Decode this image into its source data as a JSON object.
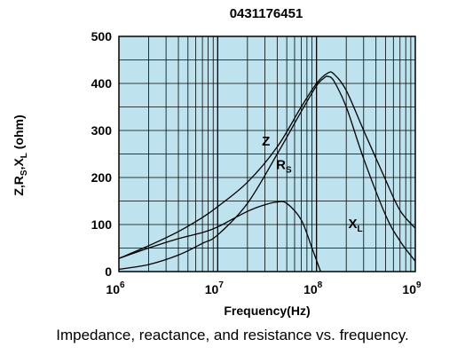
{
  "caption": "Impedance, reactance, and resistance vs. frequency.",
  "colors": {
    "plot_background": "#bfe3ee",
    "grid": "#000000",
    "lines": "#000000"
  },
  "chart_data": {
    "type": "line",
    "title": "0431176451",
    "xlabel": "Frequency(Hz)",
    "ylabel_parts": [
      "Z,R",
      "S",
      ",X",
      "L",
      " (ohm)"
    ],
    "x_scale": "log",
    "xlim": [
      1000000,
      1000000000
    ],
    "ylim": [
      0,
      500
    ],
    "grid": true,
    "x_ticks": [
      {
        "base": "10",
        "exp": "6"
      },
      {
        "base": "10",
        "exp": "7"
      },
      {
        "base": "10",
        "exp": "8"
      },
      {
        "base": "10",
        "exp": "9"
      }
    ],
    "y_ticks": [
      "0",
      "100",
      "200",
      "300",
      "400",
      "500"
    ],
    "series": [
      {
        "name": "Z",
        "label_main": "Z",
        "label_sub": "",
        "label_x": 28000000,
        "label_y": 268,
        "points": [
          [
            1000000,
            28
          ],
          [
            2000000,
            55
          ],
          [
            4000000,
            85
          ],
          [
            7000000,
            115
          ],
          [
            10000000,
            138
          ],
          [
            20000000,
            190
          ],
          [
            40000000,
            265
          ],
          [
            70000000,
            350
          ],
          [
            100000000,
            400
          ],
          [
            130000000,
            422
          ],
          [
            150000000,
            420
          ],
          [
            200000000,
            385
          ],
          [
            300000000,
            300
          ],
          [
            500000000,
            195
          ],
          [
            700000000,
            130
          ],
          [
            1000000000,
            92
          ]
        ]
      },
      {
        "name": "RS",
        "label_main": "R",
        "label_sub": "S",
        "label_x": 39000000,
        "label_y": 218,
        "points": [
          [
            1000000,
            5
          ],
          [
            2000000,
            15
          ],
          [
            4000000,
            35
          ],
          [
            7000000,
            60
          ],
          [
            10000000,
            78
          ],
          [
            20000000,
            145
          ],
          [
            40000000,
            250
          ],
          [
            70000000,
            340
          ],
          [
            100000000,
            395
          ],
          [
            120000000,
            412
          ],
          [
            130000000,
            415
          ],
          [
            150000000,
            405
          ],
          [
            200000000,
            350
          ],
          [
            300000000,
            240
          ],
          [
            500000000,
            120
          ],
          [
            700000000,
            65
          ],
          [
            1000000000,
            22
          ]
        ]
      },
      {
        "name": "XL",
        "label_main": "X",
        "label_sub": "L",
        "label_x": 210000000,
        "label_y": 92,
        "points": [
          [
            1000000,
            28
          ],
          [
            2000000,
            50
          ],
          [
            4000000,
            70
          ],
          [
            7000000,
            83
          ],
          [
            10000000,
            95
          ],
          [
            20000000,
            128
          ],
          [
            30000000,
            142
          ],
          [
            40000000,
            148
          ],
          [
            50000000,
            145
          ],
          [
            70000000,
            110
          ],
          [
            90000000,
            50
          ],
          [
            110000000,
            0
          ]
        ]
      }
    ]
  }
}
